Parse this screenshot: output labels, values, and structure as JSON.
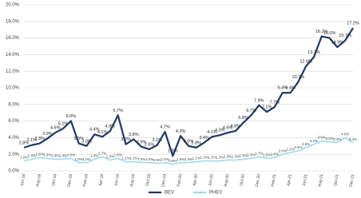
{
  "chart_data": {
    "type": "line",
    "categories": [
      "Jun-18",
      null,
      "Aug-18",
      null,
      "Oct-18",
      null,
      "Dec-18",
      null,
      "Feb-19",
      null,
      "Apr-19",
      null,
      "Jun-19",
      null,
      "Aug-19",
      null,
      "Oct-19",
      null,
      "Dec-19",
      null,
      "Feb-20",
      null,
      "Apr-20",
      null,
      "Jun-20",
      null,
      "Aug-20",
      null,
      "Oct-20",
      null,
      "Dec-20",
      null,
      "Feb-21",
      null,
      "Apr-21",
      null,
      "Jun-21",
      null,
      "Aug-21",
      null,
      "Oct-21",
      null,
      "Dec-21"
    ],
    "series": [
      {
        "name": "BEV",
        "color": "#1f3864",
        "values": [
          2.8,
          3.1,
          3.3,
          3.9,
          4.6,
          5.1,
          6.0,
          3.3,
          3.0,
          4.4,
          4.1,
          4.8,
          6.7,
          3.2,
          3.8,
          2.9,
          2.6,
          3.1,
          4.7,
          1.8,
          4.2,
          3.0,
          2.8,
          3.4,
          4.1,
          4.3,
          4.6,
          4.8,
          5.8,
          6.7,
          7.9,
          7.1,
          7.7,
          9.4,
          9.4,
          10.7,
          12.6,
          13.7,
          16.2,
          16.0,
          14.9,
          15.7,
          17.2
        ],
        "value_labels": [
          "2.8%",
          "3.1%",
          "3.3%",
          "3.9%",
          "4.6%",
          "5.1%",
          "6.0%",
          "3.3%",
          "3.0%",
          "4.4%",
          "4.1%",
          "4.8%",
          "6.7%",
          "3.2%",
          "3.8%",
          "2.9%",
          "2.6%",
          "3.1%",
          "4.7%",
          "1.8%",
          "4.2%",
          "3.0%",
          "2.8%",
          "3.4%",
          "4.1%",
          "4.3%",
          "4.6%",
          "4.8%",
          "5.8%",
          "6.7%",
          "7.9%",
          "7.1%",
          "7.7%",
          "9.4%",
          "9.4%",
          "10.7%",
          "12.6%",
          "13.7%",
          "16.2%",
          "16.0%",
          "14.9%",
          "15.7%",
          "17.2%"
        ]
      },
      {
        "name": "PHEV",
        "color": "#9dd9ef",
        "values": [
          1.2,
          1.4,
          1.6,
          1.5,
          1.4,
          1.4,
          1.5,
          1.0,
          1.0,
          1.4,
          1.7,
          1.3,
          1.5,
          1.1,
          1.1,
          1.0,
          1.0,
          0.9,
          1.0,
          0.8,
          1.0,
          1.0,
          1.1,
          1.2,
          1.2,
          1.2,
          1.3,
          1.3,
          1.4,
          1.5,
          1.7,
          1.5,
          1.6,
          2.0,
          2.2,
          2.4,
          2.8,
          3.2,
          3.6,
          3.5,
          3.4,
          4.0,
          3.4
        ],
        "value_labels": [
          "1.2%",
          "1.4%",
          "1.6%",
          "1.5%",
          "1.4%",
          "1.4%",
          "1.5%",
          "1.0%",
          "1.0%",
          "1.4%",
          "1.7%",
          "1.3%",
          "1.5%",
          "1.1%",
          "1.1%",
          "1.0%",
          "1.0%",
          "0.9%",
          "1.0%",
          "0.8%",
          "1.0%",
          "1.0%",
          "1.1%",
          "1.2%",
          "1.2%",
          "1.2%",
          "1.3%",
          "1.3%",
          "1.4%",
          "1.5%",
          "1.7%",
          "1.5%",
          "1.6%",
          "2.0%",
          "2.2%",
          "2.4%",
          "2.8%",
          "3.2%",
          "3.6%",
          "3.5%",
          "3.4%",
          "4.0%",
          "3.4%"
        ]
      }
    ],
    "ylim": [
      0,
      20
    ],
    "yticks": [
      {
        "value": 0,
        "label": "0.0%"
      },
      {
        "value": 2,
        "label": "2.0%"
      },
      {
        "value": 4,
        "label": "4.0%"
      },
      {
        "value": 6,
        "label": "6.0%"
      },
      {
        "value": 8,
        "label": "8.0%"
      },
      {
        "value": 10,
        "label": "10.0%"
      },
      {
        "value": 12,
        "label": "12.0%"
      },
      {
        "value": 14,
        "label": "14.0%"
      },
      {
        "value": 16,
        "label": "16.0%"
      },
      {
        "value": 18,
        "label": "18.0%"
      },
      {
        "value": 20,
        "label": "20.0%"
      }
    ],
    "grid": true,
    "legend": "bottom"
  }
}
